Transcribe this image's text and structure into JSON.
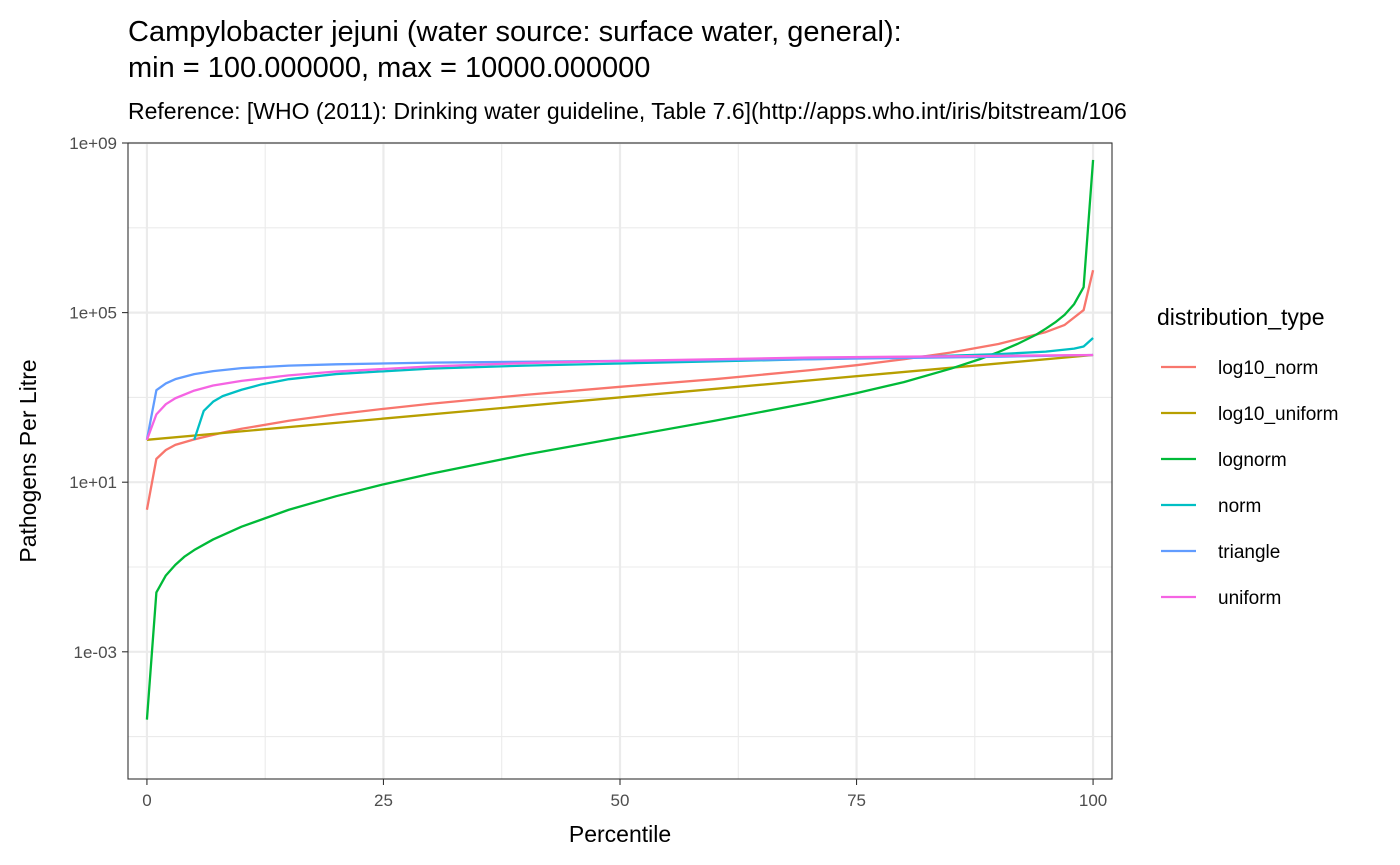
{
  "chart_data": {
    "type": "line",
    "title_line1": "Campylobacter jejuni (water source: surface water, general):",
    "title_line2": "min = 100.000000, max = 10000.000000",
    "subtitle": "Reference: [WHO (2011): Drinking water guideline, Table 7.6](http://apps.who.int/iris/bitstream/106",
    "xlabel": "Percentile",
    "ylabel": "Pathogens Per Litre",
    "xlim": [
      -2,
      102
    ],
    "ylim_log10": [
      -6,
      9
    ],
    "y_scale": "log10",
    "x_ticks": [
      0,
      25,
      50,
      75,
      100
    ],
    "x_tick_labels": [
      "0",
      "25",
      "50",
      "75",
      "100"
    ],
    "y_ticks_log10": [
      -3,
      1,
      5,
      9
    ],
    "y_tick_labels": [
      "1e-03",
      "1e+01",
      "1e+05",
      "1e+09"
    ],
    "grid": true,
    "legend": {
      "title": "distribution_type",
      "position": "right"
    },
    "series": [
      {
        "name": "log10_norm",
        "color": "#F8766D",
        "x": [
          0,
          1,
          2,
          3,
          5,
          8,
          10,
          15,
          20,
          25,
          30,
          40,
          50,
          60,
          70,
          75,
          80,
          85,
          90,
          95,
          97,
          99,
          100
        ],
        "log10_y": [
          0.35,
          1.55,
          1.76,
          1.88,
          2.01,
          2.17,
          2.26,
          2.45,
          2.6,
          2.73,
          2.85,
          3.06,
          3.25,
          3.43,
          3.64,
          3.76,
          3.9,
          4.06,
          4.26,
          4.54,
          4.71,
          5.06,
          6.0
        ]
      },
      {
        "name": "log10_uniform",
        "color": "#B79F00",
        "x": [
          0,
          100
        ],
        "log10_y": [
          2.0,
          4.0
        ]
      },
      {
        "name": "lognorm",
        "color": "#00BA38",
        "x": [
          0,
          1,
          2,
          3,
          4,
          5,
          7,
          10,
          15,
          20,
          25,
          30,
          40,
          50,
          60,
          70,
          75,
          80,
          85,
          88,
          90,
          92,
          94,
          95,
          96,
          97,
          98,
          99,
          100
        ],
        "log10_y": [
          -4.6,
          -1.6,
          -1.2,
          -0.95,
          -0.75,
          -0.6,
          -0.35,
          -0.05,
          0.35,
          0.67,
          0.95,
          1.2,
          1.65,
          2.05,
          2.45,
          2.87,
          3.1,
          3.36,
          3.68,
          3.9,
          4.07,
          4.26,
          4.48,
          4.62,
          4.77,
          4.95,
          5.2,
          5.6,
          8.6
        ]
      },
      {
        "name": "norm",
        "color": "#00BFC4",
        "x": [
          5,
          6,
          7,
          8,
          10,
          12,
          15,
          20,
          30,
          40,
          50,
          60,
          70,
          80,
          90,
          95,
          98,
          99,
          100
        ],
        "log10_y": [
          2.0,
          2.68,
          2.9,
          3.03,
          3.18,
          3.3,
          3.43,
          3.55,
          3.68,
          3.75,
          3.8,
          3.85,
          3.9,
          3.95,
          4.02,
          4.08,
          4.15,
          4.2,
          4.4
        ]
      },
      {
        "name": "triangle",
        "color": "#619CFF",
        "x": [
          0,
          1,
          2,
          3,
          5,
          7,
          10,
          15,
          20,
          30,
          40,
          50,
          60,
          70,
          80,
          90,
          95,
          100
        ],
        "log10_y": [
          2.0,
          3.17,
          3.33,
          3.43,
          3.55,
          3.62,
          3.69,
          3.75,
          3.78,
          3.82,
          3.84,
          3.86,
          3.88,
          3.9,
          3.93,
          3.96,
          3.98,
          4.0
        ]
      },
      {
        "name": "uniform",
        "color": "#F564E3",
        "x": [
          0,
          1,
          2,
          3,
          5,
          7,
          10,
          15,
          20,
          30,
          40,
          50,
          60,
          70,
          80,
          90,
          95,
          100
        ],
        "log10_y": [
          2.0,
          2.6,
          2.84,
          2.98,
          3.16,
          3.28,
          3.39,
          3.52,
          3.61,
          3.73,
          3.81,
          3.86,
          3.9,
          3.94,
          3.96,
          3.98,
          3.99,
          4.0
        ]
      }
    ]
  }
}
